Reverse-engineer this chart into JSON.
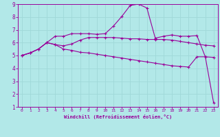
{
  "xlabel": "Windchill (Refroidissement éolien,°C)",
  "background_color": "#b2e8e8",
  "line_color": "#990099",
  "grid_color": "#9fd8d8",
  "xlim": [
    -0.5,
    23.5
  ],
  "ylim": [
    1,
    9
  ],
  "xticks": [
    0,
    1,
    2,
    3,
    4,
    5,
    6,
    7,
    8,
    9,
    10,
    11,
    12,
    13,
    14,
    15,
    16,
    17,
    18,
    19,
    20,
    21,
    22,
    23
  ],
  "yticks": [
    1,
    2,
    3,
    4,
    5,
    6,
    7,
    8,
    9
  ],
  "curve1_x": [
    0,
    1,
    2,
    3,
    4,
    5,
    6,
    7,
    8,
    9,
    10,
    11,
    12,
    13,
    14,
    15,
    16,
    17,
    18,
    19,
    20,
    21,
    22,
    23
  ],
  "curve1_y": [
    5.0,
    5.2,
    5.5,
    6.0,
    5.85,
    5.5,
    5.4,
    5.25,
    5.2,
    5.1,
    5.0,
    4.9,
    4.8,
    4.7,
    4.6,
    4.5,
    4.4,
    4.3,
    4.2,
    4.15,
    4.1,
    4.9,
    4.9,
    1.3
  ],
  "curve2_x": [
    0,
    1,
    2,
    3,
    4,
    5,
    6,
    7,
    8,
    9,
    10,
    11,
    12,
    13,
    14,
    15,
    16,
    17,
    18,
    19,
    20,
    21,
    22,
    23
  ],
  "curve2_y": [
    5.0,
    5.2,
    5.5,
    6.0,
    5.85,
    5.75,
    5.9,
    6.2,
    6.4,
    6.4,
    6.4,
    6.4,
    6.35,
    6.3,
    6.3,
    6.25,
    6.25,
    6.25,
    6.2,
    6.1,
    6.0,
    5.9,
    5.8,
    5.75
  ],
  "curve3_x": [
    0,
    1,
    2,
    3,
    4,
    5,
    6,
    7,
    8,
    9,
    10,
    11,
    12,
    13,
    14,
    15,
    16,
    17,
    18,
    19,
    20,
    21,
    22,
    23
  ],
  "curve3_y": [
    5.0,
    5.2,
    5.5,
    6.0,
    6.5,
    6.5,
    6.7,
    6.7,
    6.7,
    6.65,
    6.7,
    7.3,
    8.05,
    8.9,
    9.0,
    8.7,
    6.35,
    6.5,
    6.6,
    6.5,
    6.5,
    6.55,
    4.9,
    4.85
  ],
  "marker": "+",
  "marker_size": 3,
  "linewidth": 0.8
}
